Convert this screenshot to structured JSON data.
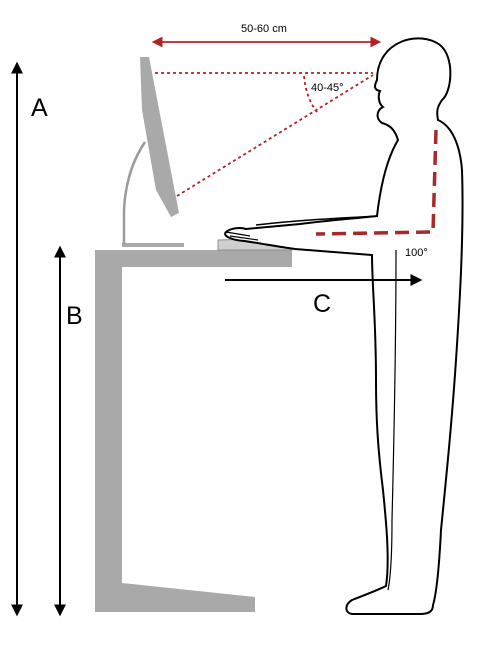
{
  "labels": {
    "distance": "50-60 cm",
    "angle": "40-45°",
    "elbow": "100°",
    "a": "A",
    "b": "B",
    "c": "C"
  },
  "colors": {
    "desk": "#a9a9a9",
    "guide_red": "#b22222",
    "posture_red": "#a52a2a",
    "outline": "#000000"
  }
}
